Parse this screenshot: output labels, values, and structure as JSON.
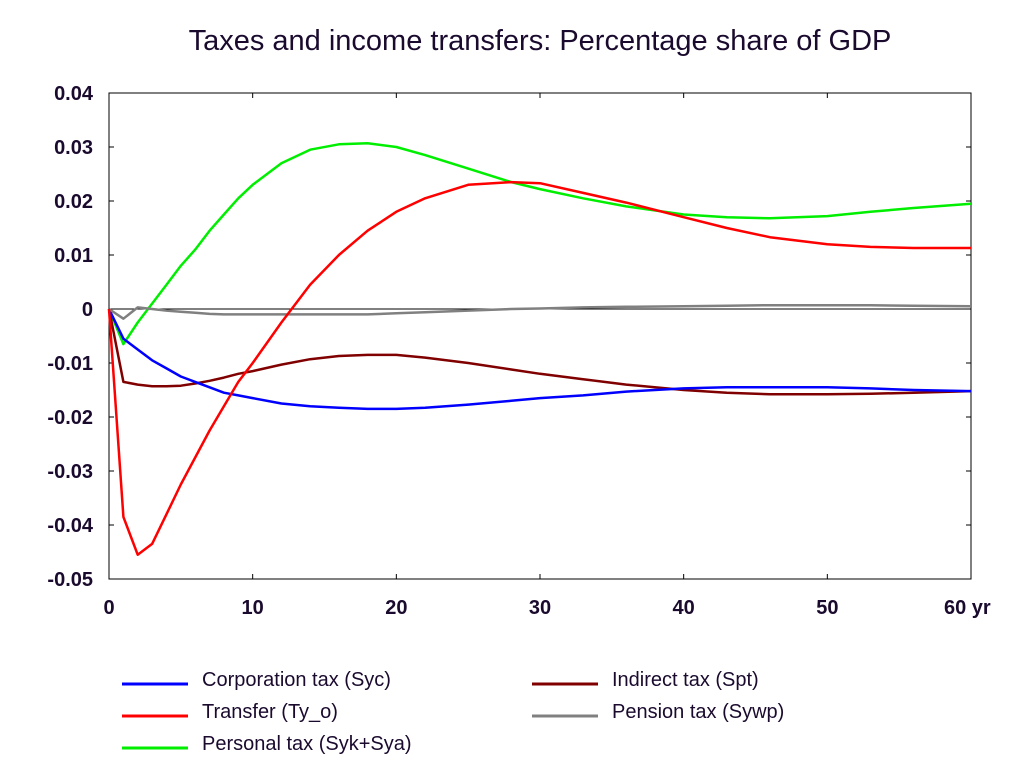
{
  "chart_data": {
    "type": "line",
    "title": "Taxes and income transfers: Percentage share of GDP",
    "xlabel": "",
    "ylabel": "",
    "x_unit": "yr",
    "xlim": [
      0,
      60
    ],
    "ylim": [
      -0.05,
      0.04
    ],
    "x_ticks": [
      0,
      10,
      20,
      30,
      40,
      50,
      60
    ],
    "x_tick_labels": [
      "0",
      "10",
      "20",
      "30",
      "40",
      "50",
      "60 yr"
    ],
    "y_ticks": [
      0.04,
      0.03,
      0.02,
      0.01,
      0,
      -0.01,
      -0.02,
      -0.03,
      -0.04,
      -0.05
    ],
    "y_tick_labels": [
      "0.04",
      "0.03",
      "0.02",
      "0.01",
      "0",
      "-0.01",
      "-0.02",
      "-0.03",
      "-0.04",
      "-0.05"
    ],
    "grid": false,
    "zero_line": true,
    "legend_position": "bottom",
    "x": [
      0,
      1,
      2,
      3,
      4,
      5,
      6,
      7,
      8,
      9,
      10,
      12,
      14,
      16,
      18,
      20,
      22,
      25,
      28,
      30,
      33,
      36,
      40,
      43,
      46,
      50,
      53,
      56,
      60
    ],
    "series": [
      {
        "name": "Corporation tax (Syc)",
        "color": "#0000ff",
        "values": [
          0,
          -0.0055,
          -0.0075,
          -0.0095,
          -0.011,
          -0.0125,
          -0.0135,
          -0.0145,
          -0.0155,
          -0.016,
          -0.0165,
          -0.0175,
          -0.018,
          -0.0183,
          -0.0185,
          -0.0185,
          -0.0183,
          -0.0177,
          -0.017,
          -0.0165,
          -0.016,
          -0.0153,
          -0.0147,
          -0.0145,
          -0.0145,
          -0.0145,
          -0.0147,
          -0.015,
          -0.0152
        ]
      },
      {
        "name": "Transfer (Ty_o)",
        "color": "#ff0000",
        "values": [
          0,
          -0.0385,
          -0.0455,
          -0.0435,
          -0.038,
          -0.0325,
          -0.0275,
          -0.0225,
          -0.018,
          -0.0135,
          -0.01,
          -0.0025,
          0.0045,
          0.01,
          0.0145,
          0.018,
          0.0205,
          0.023,
          0.0235,
          0.0233,
          0.0215,
          0.0197,
          0.017,
          0.015,
          0.0133,
          0.012,
          0.0115,
          0.0113,
          0.0113
        ]
      },
      {
        "name": "Personal tax (Syk+Sya)",
        "color": "#00ee00",
        "values": [
          0,
          -0.0065,
          -0.0025,
          0.001,
          0.0045,
          0.008,
          0.011,
          0.0145,
          0.0175,
          0.0205,
          0.023,
          0.027,
          0.0295,
          0.0305,
          0.0307,
          0.03,
          0.0285,
          0.026,
          0.0235,
          0.0222,
          0.0205,
          0.019,
          0.0175,
          0.017,
          0.0168,
          0.0172,
          0.018,
          0.0187,
          0.0195
        ]
      },
      {
        "name": "Indirect tax (Spt)",
        "color": "#800000",
        "values": [
          0,
          -0.0135,
          -0.014,
          -0.0143,
          -0.0143,
          -0.0142,
          -0.0138,
          -0.0133,
          -0.0127,
          -0.012,
          -0.0115,
          -0.0103,
          -0.0093,
          -0.0087,
          -0.0085,
          -0.0085,
          -0.009,
          -0.01,
          -0.0112,
          -0.012,
          -0.013,
          -0.014,
          -0.015,
          -0.0155,
          -0.0158,
          -0.0158,
          -0.0157,
          -0.0155,
          -0.0152
        ]
      },
      {
        "name": "Pension tax (Sywp)",
        "color": "#808080",
        "values": [
          0,
          -0.0018,
          0.0003,
          0,
          -0.0003,
          -0.0005,
          -0.0007,
          -0.0009,
          -0.001,
          -0.001,
          -0.001,
          -0.001,
          -0.001,
          -0.001,
          -0.001,
          -0.0008,
          -0.0006,
          -0.0003,
          0,
          0.0001,
          0.0003,
          0.0004,
          0.0005,
          0.0006,
          0.0007,
          0.0007,
          0.0007,
          0.0006,
          0.0005
        ]
      }
    ],
    "legend_layout": [
      [
        "Corporation tax (Syc)",
        "Indirect tax (Spt)"
      ],
      [
        "Transfer (Ty_o)",
        "Pension tax (Sywp)"
      ],
      [
        "Personal tax (Syk+Sya)"
      ]
    ]
  }
}
